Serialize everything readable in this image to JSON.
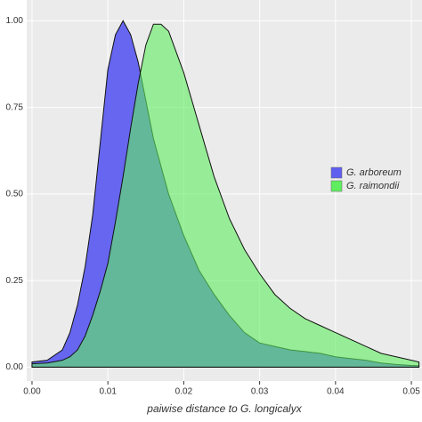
{
  "chart_data": {
    "type": "area",
    "x_label": "paiwise distance to G. longicalyx",
    "x": [
      0,
      0.002,
      0.004,
      0.005,
      0.006,
      0.007,
      0.008,
      0.009,
      0.01,
      0.011,
      0.012,
      0.013,
      0.014,
      0.015,
      0.016,
      0.017,
      0.018,
      0.02,
      0.022,
      0.024,
      0.026,
      0.028,
      0.03,
      0.032,
      0.034,
      0.036,
      0.038,
      0.04,
      0.042,
      0.044,
      0.046,
      0.048,
      0.05,
      0.051
    ],
    "series": [
      {
        "name": "G. arboreum",
        "color": "#5f5ff0",
        "values": [
          0.015,
          0.02,
          0.05,
          0.1,
          0.18,
          0.29,
          0.44,
          0.65,
          0.86,
          0.96,
          1.0,
          0.96,
          0.88,
          0.77,
          0.66,
          0.58,
          0.5,
          0.38,
          0.28,
          0.21,
          0.15,
          0.1,
          0.07,
          0.06,
          0.05,
          0.045,
          0.04,
          0.03,
          0.025,
          0.02,
          0.012,
          0.008,
          0.005,
          0.004
        ]
      },
      {
        "name": "G. raimondii",
        "color": "#5fee5f",
        "values": [
          0.01,
          0.012,
          0.02,
          0.03,
          0.05,
          0.09,
          0.15,
          0.22,
          0.3,
          0.42,
          0.55,
          0.69,
          0.82,
          0.93,
          0.99,
          0.99,
          0.97,
          0.85,
          0.7,
          0.55,
          0.43,
          0.34,
          0.27,
          0.21,
          0.17,
          0.14,
          0.12,
          0.1,
          0.08,
          0.06,
          0.04,
          0.03,
          0.02,
          0.015
        ]
      }
    ],
    "xlim": [
      -0.0007,
      0.0514
    ],
    "ylim": [
      -0.04,
      1.06
    ],
    "xticks": [
      {
        "value": 0,
        "label": "0.00"
      },
      {
        "value": 0.01,
        "label": "0.01"
      },
      {
        "value": 0.02,
        "label": "0.02"
      },
      {
        "value": 0.03,
        "label": "0.03"
      },
      {
        "value": 0.04,
        "label": "0.04"
      },
      {
        "value": 0.05,
        "label": "0.05"
      }
    ],
    "yticks": [
      {
        "value": 0,
        "label": "0.00"
      },
      {
        "value": 0.25,
        "label": "0.25"
      },
      {
        "value": 0.5,
        "label": "0.50"
      },
      {
        "value": 0.75,
        "label": "0.75"
      },
      {
        "value": 1,
        "label": "1.00"
      }
    ],
    "grid": true,
    "legend": "right"
  }
}
